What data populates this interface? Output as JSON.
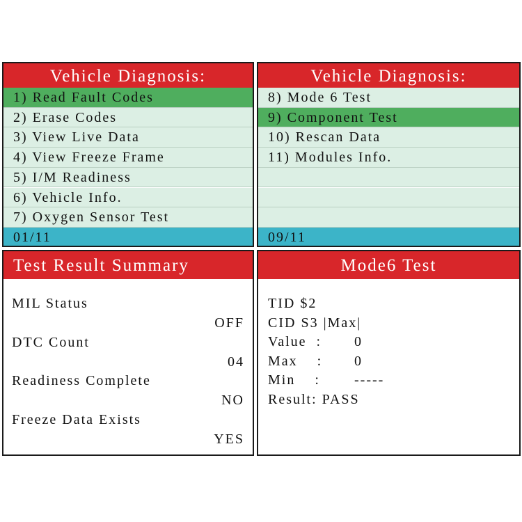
{
  "menus": [
    {
      "title": "Vehicle Diagnosis:",
      "selected": 0,
      "items": [
        "1) Read Fault Codes",
        "2) Erase Codes",
        "3) View Live Data",
        "4) View Freeze Frame",
        "5) I/M Readiness",
        "6) Vehicle Info.",
        "7) Oxygen Sensor Test"
      ],
      "page": "01/11"
    },
    {
      "title": "Vehicle Diagnosis:",
      "selected": 1,
      "items": [
        "8) Mode 6 Test",
        "9) Component  Test",
        "10) Rescan Data",
        "11) Modules Info."
      ],
      "page": "09/11"
    }
  ],
  "summary": {
    "title": "Test Result Summary",
    "rows": [
      {
        "label": "MIL Status",
        "value": "OFF"
      },
      {
        "label": "DTC Count",
        "value": "04"
      },
      {
        "label": "Readiness Complete",
        "value": "NO"
      },
      {
        "label": "Freeze Data Exists",
        "value": "YES"
      }
    ]
  },
  "mode6": {
    "title": "Mode6 Test",
    "lines": [
      {
        "label": "TID $2"
      },
      {
        "label": "CID S3 |Max|"
      },
      {
        "label": "Value  :",
        "value": "0"
      },
      {
        "label": "Max    :",
        "value": "0"
      },
      {
        "label": "Min    :",
        "value": "-----"
      },
      {
        "label": "Result: PASS"
      }
    ]
  }
}
